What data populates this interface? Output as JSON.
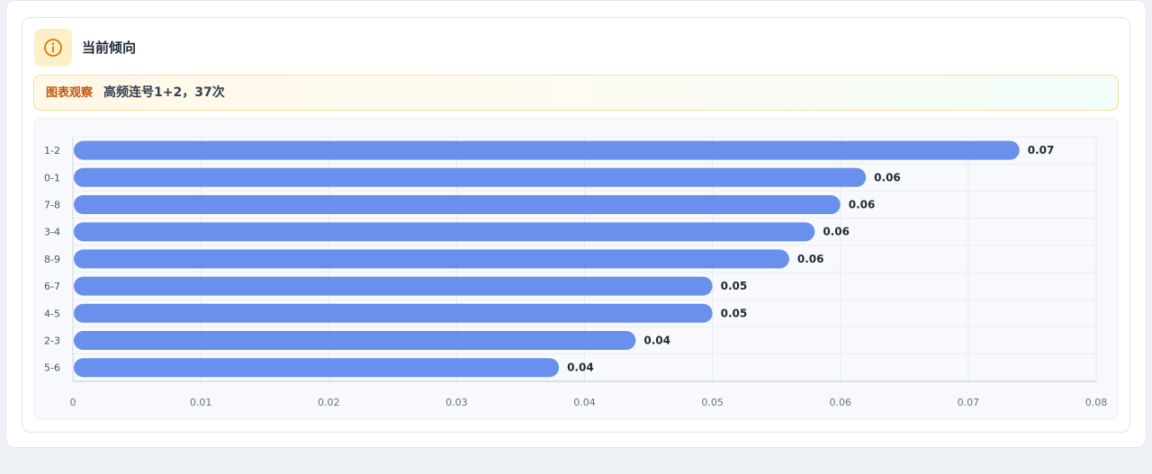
{
  "header": {
    "title": "当前倾向",
    "icon": "info-icon"
  },
  "banner": {
    "tag": "图表观察",
    "text": "高频连号1+2，37次"
  },
  "colors": {
    "bar": "#6890ec",
    "accent": "#d97706"
  },
  "chart_data": {
    "type": "bar",
    "orientation": "horizontal",
    "categories": [
      "1-2",
      "0-1",
      "7-8",
      "3-4",
      "8-9",
      "6-7",
      "4-5",
      "2-3",
      "5-6"
    ],
    "values": [
      0.074,
      0.062,
      0.06,
      0.058,
      0.056,
      0.05,
      0.05,
      0.044,
      0.038
    ],
    "value_labels": [
      "0.07",
      "0.06",
      "0.06",
      "0.06",
      "0.06",
      "0.05",
      "0.05",
      "0.04",
      "0.04"
    ],
    "xlim": [
      0,
      0.08
    ],
    "xticks": [
      "0",
      "0.01",
      "0.02",
      "0.03",
      "0.04",
      "0.05",
      "0.06",
      "0.07",
      "0.08"
    ],
    "grid": true
  }
}
